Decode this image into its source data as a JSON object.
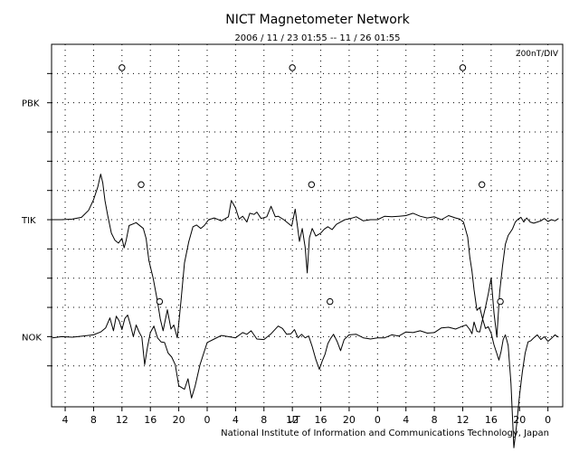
{
  "chart_data": {
    "type": "line",
    "title": "NICT Magnetometer Network",
    "subtitle": "2006 / 11 / 23   01:55 -- 11 / 26   01:55",
    "scale_label": "200nT/DIV",
    "footer": "National Institute of Information and Communications Technology, Japan",
    "x_unit_label": "UT",
    "xlim": [
      2.083,
      74.083
    ],
    "x_ticks": [
      4,
      8,
      12,
      16,
      20,
      24,
      28,
      32,
      36,
      40,
      44,
      48,
      52,
      56,
      60,
      64,
      68,
      72
    ],
    "x_tick_labels": [
      "4",
      "8",
      "12",
      "16",
      "20",
      "0",
      "4",
      "8",
      "12",
      "16",
      "20",
      "0",
      "4",
      "8",
      "12",
      "16",
      "20",
      "0"
    ],
    "ylim": [
      -20,
      600
    ],
    "grid": true,
    "stations": [
      {
        "name": "PBK",
        "baseline": 500,
        "markers": [
          12.0,
          36.0,
          60.0
        ],
        "series": {
          "x": [],
          "y": []
        }
      },
      {
        "name": "TIK",
        "baseline": 300,
        "markers": [
          14.7,
          38.7,
          62.7
        ],
        "series": {
          "x": [
            2.2,
            3.5,
            5.0,
            6.3,
            7.3,
            8.0,
            8.6,
            9.0,
            9.3,
            9.6,
            10.0,
            10.5,
            11.0,
            11.5,
            12.0,
            12.3,
            12.6,
            13.0,
            14.0,
            15.0,
            15.4,
            15.8,
            16.4,
            17.0,
            17.4,
            17.8,
            18.4,
            18.9,
            19.3,
            19.8,
            20.3,
            20.8,
            21.4,
            22.0,
            22.5,
            23.1,
            23.6,
            24.2,
            25.0,
            26.0,
            27.0,
            27.4,
            28.0,
            28.5,
            29.0,
            29.6,
            30.0,
            30.6,
            31.0,
            31.6,
            32.4,
            33.0,
            33.6,
            34.0,
            34.8,
            35.4,
            35.9,
            36.4,
            37.0,
            37.4,
            37.8,
            38.1,
            38.4,
            38.8,
            39.3,
            40.0,
            40.5,
            41.0,
            41.6,
            42.2,
            42.8,
            43.4,
            44.2,
            45.0,
            46.0,
            47.0,
            48.0,
            49.0,
            50.0,
            51.0,
            52.0,
            53.0,
            54.0,
            55.0,
            56.0,
            57.0,
            58.0,
            59.0,
            59.6,
            60.1,
            60.7,
            61.0,
            61.3,
            61.6,
            62.0,
            62.4,
            62.8,
            63.2,
            63.6,
            64.0,
            64.4,
            64.8,
            65.2,
            65.6,
            66.0,
            66.4,
            67.0,
            67.4,
            67.8,
            68.2,
            68.6,
            69.0,
            69.5,
            70.0,
            70.5,
            71.0,
            71.5,
            72.0,
            72.5,
            73.0,
            73.5
          ],
          "y": [
            300,
            300,
            301,
            304,
            316,
            334,
            356,
            378,
            363,
            333,
            307,
            277,
            265,
            260,
            268,
            252,
            265,
            290,
            295,
            285,
            268,
            230,
            200,
            160,
            130,
            110,
            146,
            113,
            120,
            98,
            160,
            226,
            262,
            288,
            291,
            285,
            290,
            300,
            303,
            298,
            305,
            333,
            320,
            301,
            306,
            296,
            311,
            309,
            313,
            302,
            305,
            323,
            305,
            306,
            300,
            294,
            289,
            318,
            263,
            285,
            253,
            209,
            269,
            285,
            272,
            277,
            284,
            288,
            283,
            292,
            296,
            300,
            302,
            305,
            298,
            300,
            300,
            306,
            305,
            306,
            307,
            311,
            306,
            303,
            305,
            300,
            307,
            303,
            301,
            296,
            270,
            236,
            212,
            180,
            145,
            150,
            130,
            150,
            173,
            200,
            141,
            99,
            176,
            220,
            258,
            273,
            284,
            296,
            301,
            304,
            296,
            303,
            296,
            294,
            296,
            298,
            302,
            297,
            300,
            298,
            302
          ]
        }
      },
      {
        "name": "NOK",
        "baseline": 100,
        "markers": [
          17.3,
          41.3,
          65.3
        ],
        "series": {
          "x": [
            2.2,
            3.5,
            5.0,
            6.5,
            8.0,
            9.0,
            9.7,
            10.3,
            10.8,
            11.2,
            11.6,
            12.0,
            12.4,
            12.8,
            13.2,
            13.6,
            14.0,
            14.4,
            14.8,
            15.2,
            15.6,
            16.0,
            16.5,
            17.0,
            17.5,
            18.0,
            18.5,
            19.0,
            19.5,
            20.0,
            20.4,
            20.8,
            21.3,
            21.8,
            22.3,
            23.0,
            24.0,
            25.0,
            26.0,
            27.0,
            28.0,
            29.0,
            29.6,
            30.2,
            31.0,
            32.0,
            33.0,
            34.0,
            34.6,
            35.2,
            35.8,
            36.3,
            36.8,
            37.3,
            37.8,
            38.3,
            38.8,
            39.3,
            39.8,
            40.2,
            40.6,
            41.0,
            41.4,
            41.8,
            42.3,
            42.8,
            43.3,
            44.0,
            45.0,
            46.0,
            47.0,
            48.0,
            49.0,
            50.0,
            51.0,
            52.0,
            53.0,
            54.0,
            55.0,
            56.0,
            57.0,
            58.0,
            59.0,
            60.0,
            60.5,
            61.0,
            61.3,
            61.6,
            62.0,
            62.4,
            62.8,
            63.2,
            63.6,
            64.0,
            64.4,
            64.8,
            65.1,
            65.4,
            65.7,
            66.0,
            66.4,
            66.8,
            67.2,
            67.6,
            68.0,
            68.4,
            68.8,
            69.2,
            69.6,
            70.0,
            70.5,
            71.0,
            71.5,
            72.0,
            72.5,
            73.0,
            73.5
          ],
          "y": [
            98,
            100,
            99,
            101,
            103,
            108,
            115,
            132,
            110,
            135,
            127,
            112,
            131,
            137,
            120,
            100,
            120,
            108,
            99,
            52,
            83,
            107,
            118,
            98,
            91,
            90,
            72,
            65,
            52,
            16,
            13,
            10,
            28,
            -5,
            15,
            52,
            90,
            96,
            102,
            100,
            98,
            107,
            104,
            110,
            96,
            95,
            105,
            118,
            114,
            104,
            105,
            112,
            98,
            104,
            98,
            101,
            83,
            61,
            44,
            58,
            70,
            88,
            97,
            104,
            92,
            76,
            95,
            103,
            104,
            98,
            96,
            98,
            98,
            103,
            101,
            108,
            107,
            110,
            106,
            107,
            115,
            116,
            113,
            118,
            120,
            112,
            105,
            125,
            109,
            108,
            130,
            114,
            117,
            106,
            86,
            71,
            60,
            75,
            95,
            103,
            85,
            20,
            -90,
            -50,
            0,
            40,
            72,
            91,
            93,
            98,
            103,
            95,
            100,
            92,
            97,
            103,
            99
          ]
        }
      }
    ]
  }
}
